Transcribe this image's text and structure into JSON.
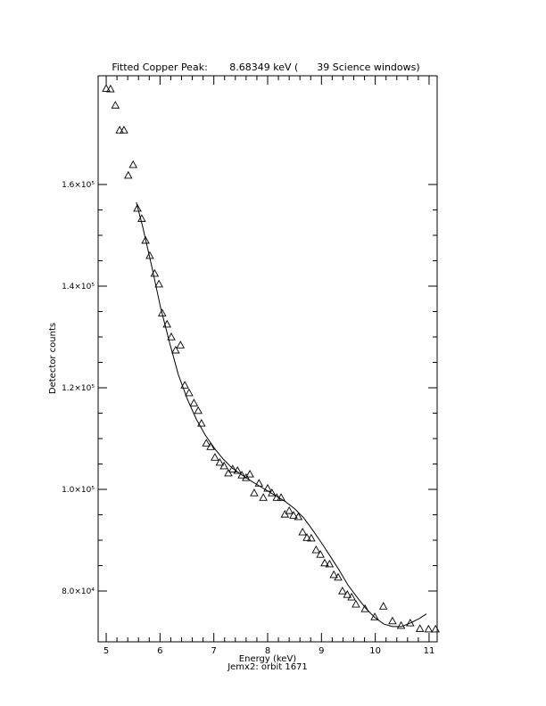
{
  "chart_data": {
    "type": "scatter",
    "title": "Fitted Copper Peak:       8.68349 keV (      39 Science windows)",
    "x_label": "Energy (keV)",
    "subtitle": "Jemx2: orbit 1671",
    "y_label": "Detector counts",
    "xlim": [
      4.85,
      11.15
    ],
    "xticks": [
      5,
      6,
      7,
      8,
      9,
      10,
      11
    ],
    "ylim": [
      70000,
      181400
    ],
    "yticks": [
      {
        "value": 80000,
        "label": "8.0×10⁴"
      },
      {
        "value": 100000,
        "label": "1.0×10⁵"
      },
      {
        "value": 120000,
        "label": "1.2×10⁵"
      },
      {
        "value": 140000,
        "label": "1.4×10⁵"
      },
      {
        "value": 160000,
        "label": "1.6×10⁵"
      }
    ],
    "color": "#000000",
    "series": [
      {
        "type": "scatter",
        "marker": "triangle",
        "x": [
          5.0,
          5.08,
          5.17,
          5.25,
          5.33,
          5.41,
          5.5,
          5.58,
          5.66,
          5.73,
          5.81,
          5.9,
          5.98,
          6.04,
          6.13,
          6.21,
          6.29,
          6.38,
          6.46,
          6.54,
          6.63,
          6.71,
          6.77,
          6.86,
          6.94,
          7.02,
          7.11,
          7.19,
          7.27,
          7.35,
          7.44,
          7.52,
          7.6,
          7.67,
          7.75,
          7.84,
          7.92,
          8.0,
          8.08,
          8.17,
          8.25,
          8.32,
          8.4,
          8.48,
          8.57,
          8.65,
          8.73,
          8.81,
          8.9,
          8.98,
          9.06,
          9.15,
          9.23,
          9.31,
          9.39,
          9.48,
          9.56,
          9.64,
          9.81,
          9.99,
          10.15,
          10.32,
          10.48,
          10.65,
          10.83,
          10.99,
          11.12
        ],
        "values": [
          178900,
          178800,
          175600,
          170700,
          170700,
          161800,
          163900,
          155300,
          153300,
          149000,
          146000,
          142500,
          140400,
          134700,
          132500,
          130000,
          127400,
          128400,
          120500,
          119000,
          117000,
          115500,
          113000,
          109100,
          108400,
          106300,
          105300,
          104600,
          103200,
          104000,
          103700,
          102800,
          102300,
          103000,
          99300,
          101200,
          98400,
          100200,
          99300,
          98400,
          98400,
          95100,
          95800,
          94900,
          94600,
          91600,
          90500,
          90400,
          88100,
          87200,
          85500,
          85300,
          83200,
          82700,
          80000,
          79300,
          78800,
          77400,
          76500,
          74900,
          77000,
          74100,
          73200,
          73700,
          72600,
          72500,
          72500
        ]
      },
      {
        "type": "line",
        "x": [
          5.56,
          5.68,
          5.85,
          6.01,
          6.18,
          6.34,
          6.51,
          6.67,
          6.84,
          7.01,
          7.17,
          7.34,
          7.5,
          7.67,
          7.84,
          8.0,
          8.17,
          8.33,
          8.5,
          8.67,
          8.83,
          9.0,
          9.16,
          9.33,
          9.49,
          9.66,
          9.83,
          9.99,
          10.16,
          10.32,
          10.49,
          10.65,
          10.82,
          10.95
        ],
        "values": [
          156500,
          151600,
          143700,
          135800,
          128800,
          122600,
          117700,
          113900,
          110700,
          108100,
          106000,
          104200,
          103000,
          101800,
          100700,
          99700,
          98600,
          97600,
          96200,
          94400,
          92100,
          89500,
          86900,
          84100,
          81200,
          78800,
          76500,
          74800,
          73500,
          73000,
          73000,
          73700,
          74600,
          75500
        ]
      }
    ]
  }
}
